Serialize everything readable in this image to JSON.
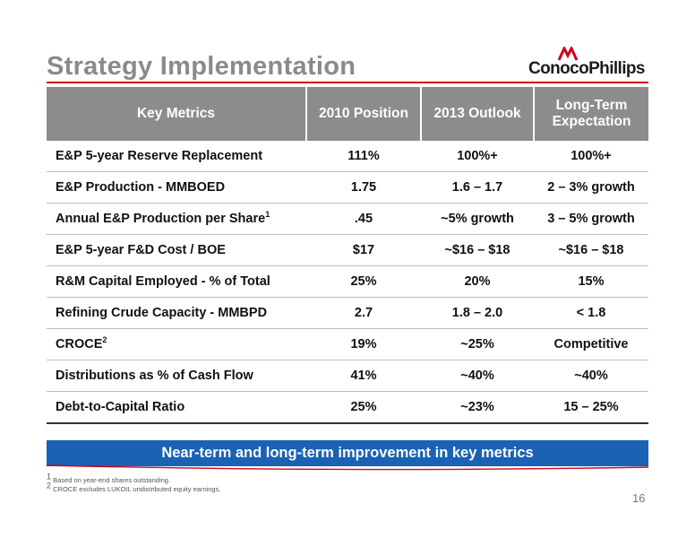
{
  "slide": {
    "title": "Strategy Implementation",
    "logo_text": "ConocoPhillips",
    "page_number": "16"
  },
  "table": {
    "headers": [
      "Key Metrics",
      "2010 Position",
      "2013 Outlook",
      "Long-Term Expectation"
    ],
    "rows": [
      {
        "metric": "E&P 5-year Reserve Replacement",
        "sup": "",
        "p2010": "111%",
        "o2013": "100%+",
        "lt": "100%+"
      },
      {
        "metric": "E&P Production - MMBOED",
        "sup": "",
        "p2010": "1.75",
        "o2013": "1.6 – 1.7",
        "lt": "2 – 3% growth"
      },
      {
        "metric": "Annual E&P Production per Share",
        "sup": "1",
        "p2010": ".45",
        "o2013": "~5% growth",
        "lt": "3 – 5% growth"
      },
      {
        "metric": "E&P 5-year F&D Cost / BOE",
        "sup": "",
        "p2010": "$17",
        "o2013": "~$16 – $18",
        "lt": "~$16 – $18"
      },
      {
        "metric": "R&M Capital Employed - % of Total",
        "sup": "",
        "p2010": "25%",
        "o2013": "20%",
        "lt": "15%"
      },
      {
        "metric": "Refining Crude Capacity - MMBPD",
        "sup": "",
        "p2010": "2.7",
        "o2013": "1.8 – 2.0",
        "lt": "< 1.8"
      },
      {
        "metric": "CROCE",
        "sup": "2",
        "p2010": "19%",
        "o2013": "~25%",
        "lt": "Competitive"
      },
      {
        "metric": "Distributions as % of Cash Flow",
        "sup": "",
        "p2010": "41%",
        "o2013": "~40%",
        "lt": "~40%"
      },
      {
        "metric": "Debt-to-Capital Ratio",
        "sup": "",
        "p2010": "25%",
        "o2013": "~23%",
        "lt": "15 – 25%"
      }
    ]
  },
  "banner": {
    "text": "Near-term and long-term improvement in key metrics"
  },
  "footnotes": [
    {
      "sup": "1",
      "text": "Based on year-end shares outstanding."
    },
    {
      "sup": "2",
      "text": "CROCE excludes LUKOIL undistributed equity earnings."
    }
  ],
  "colors": {
    "header_bg": "#8c8c8c",
    "banner_bg": "#1a62b4",
    "accent_red": "#d0021b"
  }
}
